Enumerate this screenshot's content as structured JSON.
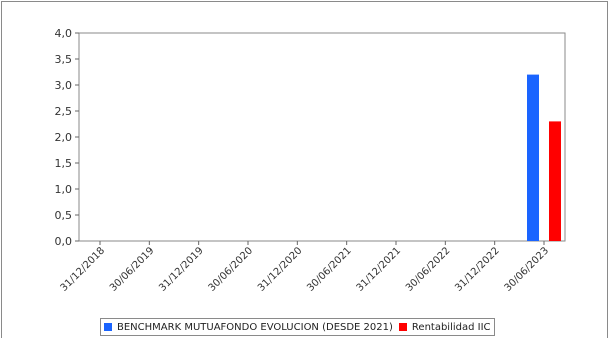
{
  "chart_data": {
    "type": "bar",
    "categories": [
      "31/12/2018",
      "30/06/2019",
      "31/12/2019",
      "30/06/2020",
      "31/12/2020",
      "30/06/2021",
      "31/12/2021",
      "30/06/2022",
      "31/12/2022",
      "30/06/2023"
    ],
    "series": [
      {
        "name": "BENCHMARK MUTUAFONDO EVOLUCION (DESDE 2021)",
        "color": "#1a64ff",
        "values": [
          null,
          null,
          null,
          null,
          null,
          null,
          null,
          null,
          null,
          3.2
        ]
      },
      {
        "name": "Rentabilidad IIC",
        "color": "#ff0000",
        "values": [
          null,
          null,
          null,
          null,
          null,
          null,
          null,
          null,
          null,
          2.3
        ]
      }
    ],
    "y_ticks": [
      "0,0",
      "0,5",
      "1,0",
      "1,5",
      "2,0",
      "2,5",
      "3,0",
      "3,5",
      "4,0"
    ],
    "ylim": [
      0,
      4
    ],
    "grid": false,
    "legend": "bottom"
  }
}
